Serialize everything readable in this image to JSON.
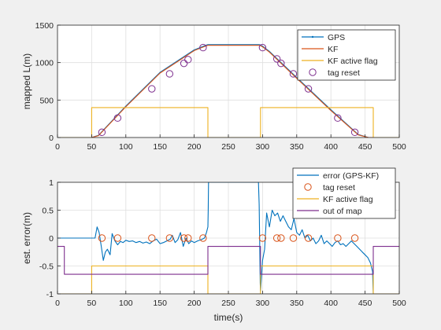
{
  "chart_data": [
    {
      "type": "line",
      "ylabel": "mapped L(m)",
      "xlim": [
        0,
        500
      ],
      "ylim": [
        0,
        1500
      ],
      "xticks": [
        0,
        50,
        100,
        150,
        200,
        250,
        300,
        350,
        400,
        450,
        500
      ],
      "yticks": [
        0,
        500,
        1000,
        1500
      ],
      "grid": true,
      "legend": "top-right",
      "series": [
        {
          "name": "GPS",
          "color": "#0072BD",
          "x": [
            0,
            50,
            60,
            100,
            150,
            200,
            218,
            220,
            296,
            300,
            310,
            350,
            400,
            440,
            455,
            460,
            500
          ],
          "y": [
            0,
            0,
            30,
            420,
            870,
            1170,
            1235,
            1240,
            1240,
            1220,
            1150,
            800,
            370,
            40,
            0,
            0,
            0
          ]
        },
        {
          "name": "KF",
          "color": "#D95319",
          "x": [
            0,
            50,
            60,
            100,
            150,
            200,
            218,
            220,
            296,
            300,
            310,
            350,
            400,
            440,
            455,
            460,
            500
          ],
          "y": [
            0,
            0,
            25,
            410,
            860,
            1160,
            1225,
            1230,
            1230,
            1210,
            1140,
            790,
            360,
            35,
            0,
            0,
            0
          ]
        },
        {
          "name": "KF active flag",
          "color": "#EDB120",
          "x": [
            0,
            50,
            50,
            220,
            220,
            297,
            297,
            462,
            462,
            500
          ],
          "y": [
            0,
            0,
            400,
            400,
            0,
            0,
            400,
            400,
            0,
            0
          ]
        },
        {
          "name": "tag reset",
          "color": "#7E2F8E",
          "marker": "circle",
          "x": [
            65,
            88,
            138,
            164,
            185,
            191,
            213,
            300,
            321,
            327,
            345,
            367,
            410,
            435
          ],
          "y": [
            70,
            260,
            650,
            850,
            990,
            1040,
            1200,
            1200,
            1050,
            990,
            850,
            650,
            260,
            70
          ]
        }
      ]
    },
    {
      "type": "line",
      "xlabel": "time(s)",
      "ylabel": "est. error(m)",
      "xlim": [
        0,
        500
      ],
      "ylim": [
        -1,
        1
      ],
      "xticks": [
        0,
        50,
        100,
        150,
        200,
        250,
        300,
        350,
        400,
        450,
        500
      ],
      "yticks": [
        -1,
        -0.5,
        0,
        0.5,
        1
      ],
      "grid": true,
      "legend": "top-right",
      "series": [
        {
          "name": "error (GPS-KF)",
          "color": "#0072BD",
          "x": [
            0,
            50,
            55,
            58,
            61,
            64,
            67,
            70,
            73,
            77,
            80,
            84,
            88,
            92,
            96,
            100,
            105,
            110,
            115,
            120,
            125,
            130,
            135,
            140,
            145,
            150,
            155,
            160,
            165,
            168,
            172,
            176,
            180,
            184,
            188,
            192,
            196,
            200,
            205,
            210,
            215,
            218,
            220,
            220.5,
            221,
            294,
            295,
            296,
            296.5,
            297,
            300,
            303,
            306,
            310,
            314,
            318,
            322,
            326,
            330,
            334,
            338,
            342,
            346,
            350,
            354,
            358,
            362,
            366,
            370,
            374,
            378,
            382,
            386,
            390,
            394,
            398,
            402,
            406,
            410,
            414,
            418,
            422,
            426,
            430,
            434,
            438,
            442,
            446,
            450,
            454,
            458,
            461,
            462,
            500
          ],
          "y": [
            0,
            0,
            0,
            0.2,
            0.1,
            -0.15,
            -0.4,
            -0.25,
            -0.2,
            -0.3,
            0.08,
            -0.05,
            -0.12,
            -0.06,
            -0.08,
            -0.04,
            -0.06,
            -0.05,
            -0.08,
            -0.06,
            -0.09,
            -0.07,
            -0.1,
            -0.05,
            -0.02,
            -0.1,
            -0.08,
            -0.05,
            -0.02,
            0.05,
            -0.08,
            -0.03,
            0.1,
            -0.15,
            0.0,
            -0.1,
            -0.05,
            -0.08,
            -0.05,
            -0.03,
            0.0,
            0.1,
            0.2,
            0.5,
            1.0,
            1.0,
            0.6,
            -0.2,
            -0.8,
            -0.95,
            -0.4,
            -0.2,
            0.45,
            0.2,
            0.5,
            0.4,
            0.45,
            0.3,
            0.4,
            0.3,
            0.2,
            0.15,
            0.35,
            0.1,
            0.05,
            0.15,
            0.0,
            0.05,
            -0.05,
            0.0,
            -0.1,
            -0.05,
            0.05,
            -0.1,
            -0.05,
            -0.1,
            -0.15,
            -0.08,
            -0.05,
            -0.12,
            -0.1,
            -0.15,
            -0.1,
            -0.05,
            -0.1,
            -0.15,
            -0.2,
            -0.25,
            -0.3,
            -0.35,
            -0.45,
            -0.6,
            -1.0,
            -1.0
          ]
        },
        {
          "name": "tag reset",
          "color": "#D95319",
          "marker": "circle",
          "x": [
            65,
            88,
            138,
            164,
            185,
            191,
            213,
            300,
            321,
            327,
            345,
            367,
            410,
            435
          ],
          "y": [
            0,
            0,
            0,
            0,
            0,
            0,
            0,
            0,
            0,
            0,
            0,
            0,
            0,
            0
          ]
        },
        {
          "name": "KF active flag",
          "color": "#EDB120",
          "x": [
            0,
            50,
            50,
            220,
            220,
            297,
            297,
            462,
            462,
            500
          ],
          "y": [
            -1,
            -1,
            -0.5,
            -0.5,
            -1,
            -1,
            -0.5,
            -0.5,
            -1,
            -1
          ]
        },
        {
          "name": "out of map",
          "color": "#7E2F8E",
          "x": [
            0,
            10,
            10,
            50,
            50,
            220,
            220,
            297,
            297,
            462,
            462,
            500
          ],
          "y": [
            -0.15,
            -0.15,
            -0.65,
            -0.65,
            -0.65,
            -0.65,
            -0.15,
            -0.15,
            -0.65,
            -0.65,
            -0.15,
            -0.15
          ]
        }
      ]
    }
  ]
}
